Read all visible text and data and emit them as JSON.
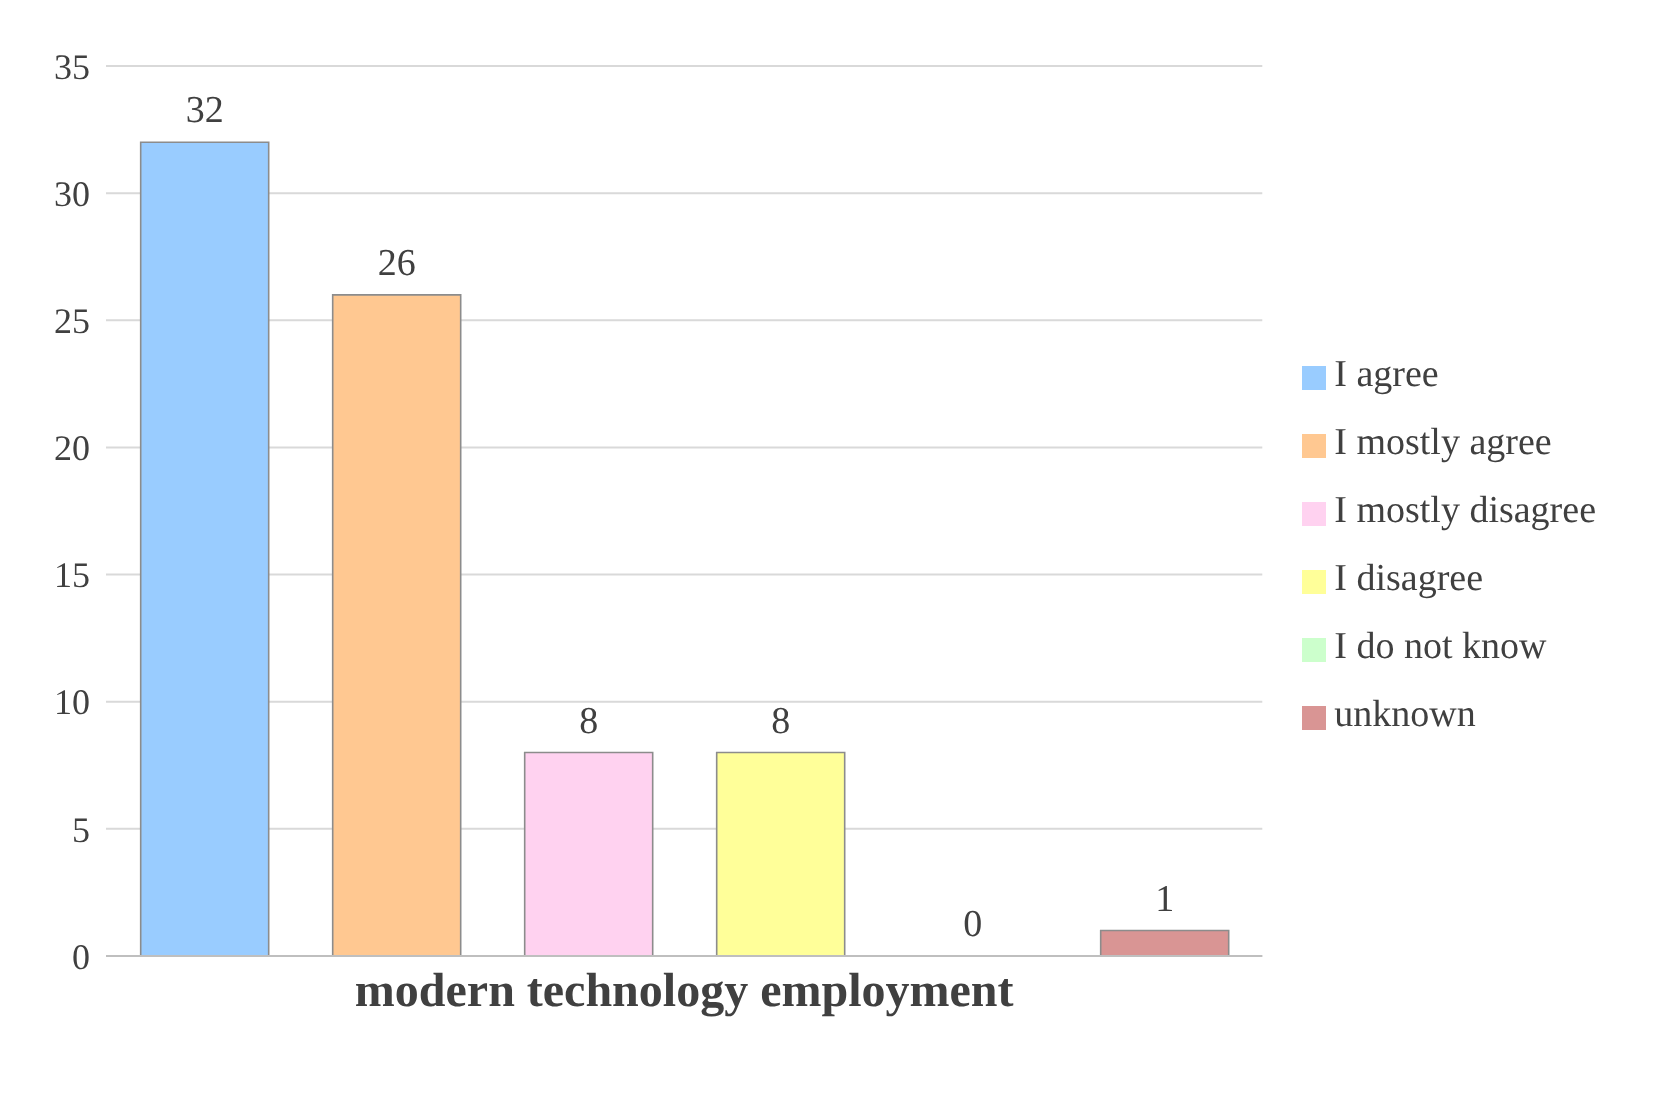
{
  "chart_data": {
    "type": "bar",
    "categories": [
      "modern technology employment"
    ],
    "series": [
      {
        "name": "I agree",
        "color": "#99ccff",
        "values": [
          32
        ]
      },
      {
        "name": "I mostly agree",
        "color": "#ffc891",
        "values": [
          26
        ]
      },
      {
        "name": "I mostly disagree",
        "color": "#ffd2f0",
        "values": [
          8
        ]
      },
      {
        "name": "I disagree",
        "color": "#ffff99",
        "values": [
          8
        ]
      },
      {
        "name": "I do not know",
        "color": "#ccffcc",
        "values": [
          0
        ]
      },
      {
        "name": "unknown",
        "color": "#d99594",
        "values": [
          1
        ]
      }
    ],
    "ylim": [
      0,
      35
    ],
    "yticks": [
      0,
      5,
      10,
      15,
      20,
      25,
      30,
      35
    ],
    "grid": "y",
    "legend": "right",
    "data_labels": true
  }
}
